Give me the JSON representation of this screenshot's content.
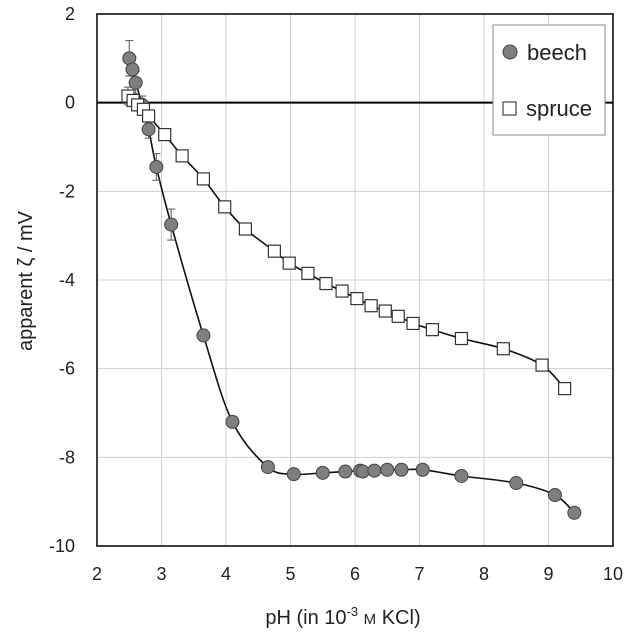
{
  "chart_data": {
    "type": "scatter",
    "title": "",
    "xlabel_parts": [
      "pH (in 10",
      "-3",
      " ",
      "M",
      " KCl)"
    ],
    "ylabel": "apparent ζ / mV",
    "xlim": [
      2,
      10
    ],
    "ylim": [
      -10,
      2
    ],
    "x_ticks": [
      2,
      3,
      4,
      5,
      6,
      7,
      8,
      9,
      10
    ],
    "y_ticks": [
      -10,
      -8,
      -6,
      -4,
      -2,
      0,
      2
    ],
    "x_tick_labels": [
      "2",
      "3",
      "4",
      "5",
      "6",
      "7",
      "8",
      "9",
      "10"
    ],
    "y_tick_labels": [
      "-10",
      "-8",
      "-6",
      "-4",
      "-2",
      "0",
      "2"
    ],
    "grid": true,
    "legend_position": "top-right",
    "series": [
      {
        "name": "beech",
        "marker": "circle",
        "color": "#7f7f7f",
        "x": [
          2.5,
          2.55,
          2.6,
          2.7,
          2.8,
          2.92,
          3.15,
          3.65,
          4.1,
          4.65,
          5.05,
          5.5,
          5.85,
          6.08,
          6.12,
          6.3,
          6.5,
          6.72,
          7.05,
          7.65,
          8.5,
          9.1,
          9.4
        ],
        "y": [
          1.0,
          0.75,
          0.45,
          -0.05,
          -0.6,
          -1.45,
          -2.75,
          -5.25,
          -7.2,
          -8.22,
          -8.38,
          -8.35,
          -8.32,
          -8.3,
          -8.32,
          -8.3,
          -8.28,
          -8.28,
          -8.28,
          -8.42,
          -8.58,
          -8.85,
          -9.25
        ],
        "error": [
          0.4,
          0.3,
          0.25,
          0.2,
          0.2,
          0.3,
          0.35,
          0.1,
          0.1,
          0.1,
          0.1,
          0.1,
          0.1,
          0.1,
          0.1,
          0.1,
          0.1,
          0.1,
          0.1,
          0.1,
          0.1,
          0.1,
          0.1
        ]
      },
      {
        "name": "spruce",
        "marker": "square",
        "color": "#ffffff",
        "x": [
          2.48,
          2.56,
          2.63,
          2.72,
          2.8,
          3.05,
          3.32,
          3.65,
          3.98,
          4.3,
          4.75,
          4.98,
          5.27,
          5.55,
          5.8,
          6.03,
          6.25,
          6.47,
          6.67,
          6.9,
          7.2,
          7.65,
          8.3,
          8.9,
          9.25
        ],
        "y": [
          0.15,
          0.05,
          -0.05,
          -0.15,
          -0.3,
          -0.72,
          -1.2,
          -1.72,
          -2.35,
          -2.85,
          -3.35,
          -3.62,
          -3.85,
          -4.08,
          -4.25,
          -4.42,
          -4.58,
          -4.7,
          -4.82,
          -4.98,
          -5.12,
          -5.32,
          -5.55,
          -5.92,
          -6.45
        ],
        "error": [
          0.2,
          0.15,
          0.12,
          0.1,
          0.1,
          0.1,
          0.1,
          0.1,
          0.1,
          0.1,
          0.1,
          0.1,
          0.1,
          0.1,
          0.1,
          0.1,
          0.1,
          0.1,
          0.1,
          0.1,
          0.1,
          0.1,
          0.1,
          0.1,
          0.1
        ]
      }
    ]
  }
}
